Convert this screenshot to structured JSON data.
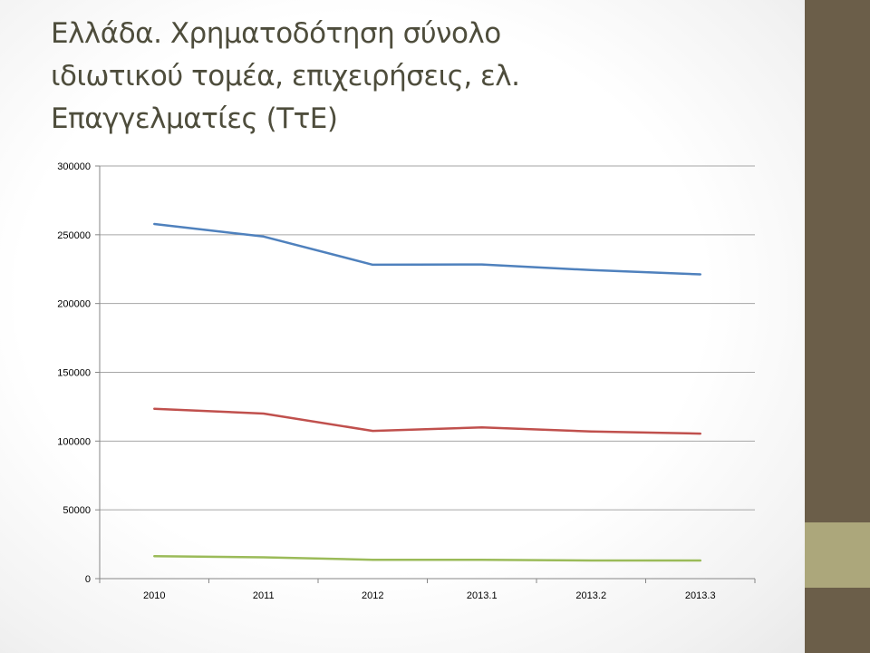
{
  "slide": {
    "title_lines": [
      "Ελλάδα. Χρηματοδότηση σύνολο",
      "ιδιωτικού τομέα,  επιχειρήσεις, ελ.",
      "Επαγγελματίες (ΤτΕ)"
    ],
    "colors": {
      "sidebar": "#6b5e49",
      "sidebar_accent": "#aca77b",
      "title_text": "#4e4d3c"
    }
  },
  "chart_data": {
    "type": "line",
    "categories": [
      "2010",
      "2011",
      "2012",
      "2013.1",
      "2013.2",
      "2013.3"
    ],
    "series": [
      {
        "color": "#4f81bd",
        "values": [
          257800,
          248700,
          228200,
          228400,
          224300,
          221200
        ]
      },
      {
        "color": "#c0504d",
        "values": [
          123500,
          120000,
          107400,
          109900,
          107000,
          105400
        ]
      },
      {
        "color": "#9bbb59",
        "values": [
          16300,
          15500,
          13700,
          13700,
          13200,
          13200
        ]
      }
    ],
    "ylim": [
      0,
      300000
    ],
    "yticks": [
      "0",
      "50000",
      "100000",
      "150000",
      "200000",
      "250000",
      "300000"
    ],
    "grid": true,
    "legend": "none"
  }
}
